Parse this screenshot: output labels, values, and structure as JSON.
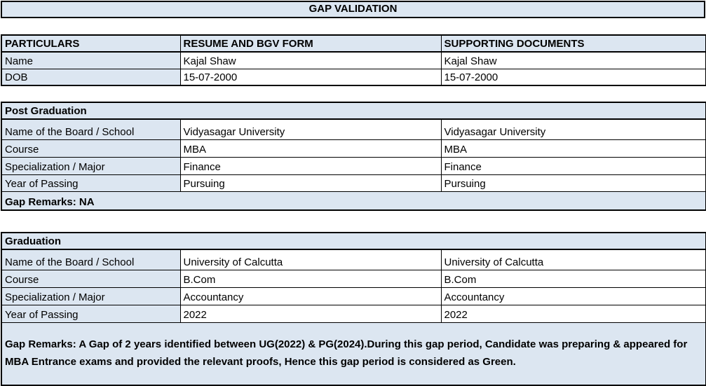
{
  "title": "GAP VALIDATION",
  "particulars_table": {
    "headers": [
      "PARTICULARS",
      "RESUME AND BGV FORM",
      "SUPPORTING DOCUMENTS"
    ],
    "rows": [
      {
        "label": "Name",
        "resume": "Kajal Shaw",
        "supporting": "Kajal Shaw"
      },
      {
        "label": "DOB",
        "resume": "15-07-2000",
        "supporting": "15-07-2000"
      }
    ]
  },
  "post_graduation": {
    "section_title": "Post Graduation",
    "rows": [
      {
        "label": "Name of the Board / School",
        "resume": "Vidyasagar University",
        "supporting": "Vidyasagar University"
      },
      {
        "label": "Course",
        "resume": "MBA",
        "supporting": "MBA"
      },
      {
        "label": "Specialization / Major",
        "resume": "Finance",
        "supporting": "Finance"
      },
      {
        "label": "Year of Passing",
        "resume": "Pursuing",
        "supporting": "Pursuing"
      }
    ],
    "gap_remarks": "Gap Remarks: NA"
  },
  "graduation": {
    "section_title": "Graduation",
    "rows": [
      {
        "label": "Name of the Board / School",
        "resume": "University of Calcutta",
        "supporting": "University of Calcutta"
      },
      {
        "label": "Course",
        "resume": "B.Com",
        "supporting": "B.Com"
      },
      {
        "label": "Specialization / Major",
        "resume": "Accountancy",
        "supporting": "Accountancy"
      },
      {
        "label": "Year of Passing",
        "resume": "2022",
        "supporting": "2022"
      }
    ],
    "gap_remarks": "Gap Remarks: A Gap of 2 years identified between UG(2022) & PG(2024).During this gap period, Candidate was preparing & appeared for MBA Entrance exams and provided the relevant proofs, Hence this gap period is considered as Green."
  },
  "colors": {
    "header_bg": "#dce6f1",
    "cell_bg": "#ffffff",
    "border": "#000000",
    "text": "#000000"
  }
}
